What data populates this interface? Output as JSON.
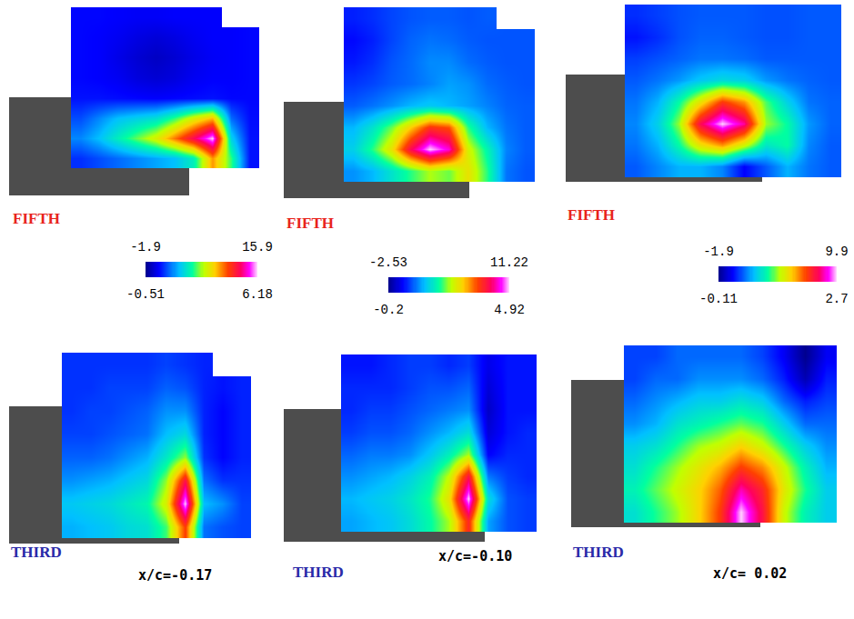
{
  "chart_data": [
    {
      "type": "heatmap",
      "title": "FIFTH",
      "tick_labels": false,
      "zlim": [
        -1.9,
        15.9
      ],
      "zticks": [
        -1.9,
        15.9
      ],
      "z": [
        [
          0.3,
          0.3,
          0.2,
          0.1,
          0.1,
          0.2,
          0.2,
          0.2,
          null,
          null
        ],
        [
          0.3,
          0.2,
          0.0,
          -0.3,
          -0.5,
          -0.3,
          0.0,
          0.2,
          0.2,
          0.3
        ],
        [
          0.3,
          0.2,
          -0.2,
          -0.6,
          -0.9,
          -0.6,
          -0.2,
          0.1,
          0.2,
          0.3
        ],
        [
          0.3,
          0.2,
          0.0,
          -0.4,
          -0.6,
          -0.4,
          0.0,
          0.2,
          0.2,
          0.3
        ],
        [
          0.5,
          0.5,
          0.4,
          0.3,
          0.2,
          0.3,
          0.4,
          0.5,
          0.3,
          0.3
        ],
        [
          1.5,
          2.5,
          3.5,
          4.0,
          4.5,
          6.0,
          8.0,
          9.5,
          2.0,
          0.4
        ],
        [
          2.5,
          3.5,
          5.0,
          6.5,
          8.0,
          10.5,
          13.0,
          15.9,
          4.0,
          0.5
        ],
        [
          1.0,
          1.5,
          2.0,
          2.5,
          3.0,
          3.5,
          5.0,
          10.0,
          6.0,
          0.5
        ]
      ]
    },
    {
      "type": "heatmap",
      "title": "FIFTH",
      "tick_labels": false,
      "zlim": [
        -2.53,
        11.22
      ],
      "zticks": [
        -2.53,
        11.22
      ],
      "z": [
        [
          -0.5,
          -0.3,
          0.0,
          0.2,
          0.3,
          0.3,
          0.2,
          0.3,
          null,
          null
        ],
        [
          -0.8,
          -0.5,
          0.0,
          0.4,
          0.6,
          0.5,
          0.3,
          0.2,
          0.2,
          0.2
        ],
        [
          -0.6,
          -0.3,
          0.2,
          0.5,
          0.9,
          0.9,
          0.5,
          0.3,
          0.2,
          0.2
        ],
        [
          -0.2,
          0.0,
          0.3,
          0.5,
          0.8,
          1.2,
          1.0,
          0.5,
          0.3,
          0.2
        ],
        [
          0.3,
          0.6,
          1.0,
          1.5,
          1.8,
          1.5,
          1.2,
          0.8,
          0.4,
          0.3
        ],
        [
          1.5,
          2.5,
          4.0,
          6.0,
          8.0,
          7.5,
          3.5,
          1.5,
          0.6,
          0.3
        ],
        [
          2.0,
          3.5,
          5.5,
          9.0,
          11.22,
          10.0,
          5.0,
          3.0,
          0.8,
          0.3
        ],
        [
          1.0,
          1.5,
          2.5,
          3.5,
          4.5,
          4.0,
          5.5,
          3.5,
          0.6,
          0.2
        ]
      ]
    },
    {
      "type": "heatmap",
      "title": "FIFTH",
      "tick_labels": false,
      "zlim": [
        -1.9,
        9.9
      ],
      "zticks": [
        -1.9,
        9.9
      ],
      "z": [
        [
          0.0,
          0.2,
          0.4,
          0.5,
          0.5,
          0.5,
          0.4,
          0.4,
          0.5,
          0.5
        ],
        [
          -0.3,
          0.0,
          0.4,
          0.6,
          0.6,
          0.5,
          0.4,
          0.4,
          0.5,
          0.5
        ],
        [
          0.2,
          0.4,
          0.6,
          0.8,
          0.8,
          0.7,
          0.5,
          0.5,
          0.5,
          0.5
        ],
        [
          0.5,
          0.8,
          1.2,
          1.8,
          2.2,
          2.0,
          1.2,
          0.8,
          0.6,
          0.5
        ],
        [
          0.8,
          1.5,
          3.0,
          5.0,
          7.0,
          6.0,
          3.5,
          2.0,
          0.8,
          0.6
        ],
        [
          1.0,
          2.0,
          4.0,
          8.0,
          9.9,
          8.5,
          4.0,
          3.0,
          1.2,
          0.6
        ],
        [
          0.8,
          1.5,
          3.0,
          5.0,
          6.0,
          4.5,
          2.5,
          3.0,
          1.0,
          0.5
        ],
        [
          0.5,
          1.0,
          1.5,
          1.5,
          1.0,
          -0.5,
          0.5,
          1.5,
          0.8,
          0.5
        ]
      ]
    },
    {
      "type": "heatmap",
      "title": "THIRD",
      "annotations": [
        "x/c=-0.17"
      ],
      "tick_labels": false,
      "zlim": [
        -0.51,
        6.18
      ],
      "zticks": [
        -0.51,
        6.18
      ],
      "z": [
        [
          0.6,
          0.6,
          0.6,
          0.6,
          0.6,
          0.7,
          0.6,
          0.5,
          null,
          null
        ],
        [
          0.6,
          0.6,
          0.7,
          0.7,
          0.7,
          0.9,
          0.8,
          0.5,
          0.4,
          0.5
        ],
        [
          0.6,
          0.7,
          0.7,
          0.8,
          0.9,
          1.2,
          1.2,
          0.5,
          0.3,
          0.5
        ],
        [
          0.7,
          0.7,
          0.8,
          0.9,
          1.0,
          1.5,
          1.8,
          0.5,
          0.3,
          0.5
        ],
        [
          0.9,
          0.9,
          1.0,
          1.2,
          1.4,
          2.0,
          2.8,
          0.6,
          0.3,
          0.5
        ],
        [
          1.2,
          1.3,
          1.4,
          1.6,
          1.8,
          2.8,
          5.0,
          1.0,
          0.6,
          0.6
        ],
        [
          1.6,
          1.7,
          1.8,
          2.0,
          2.2,
          3.2,
          6.18,
          1.5,
          1.2,
          0.7
        ],
        [
          1.4,
          1.5,
          1.6,
          1.8,
          1.9,
          2.5,
          4.5,
          1.0,
          0.8,
          0.7
        ]
      ]
    },
    {
      "type": "heatmap",
      "title": "THIRD",
      "annotations": [
        "x/c=-0.10"
      ],
      "tick_labels": false,
      "zlim": [
        -0.2,
        4.92
      ],
      "zticks": [
        -0.2,
        4.92
      ],
      "z": [
        [
          0.5,
          0.5,
          0.6,
          0.7,
          0.7,
          0.6,
          0.7,
          0.3,
          0.5,
          0.5
        ],
        [
          0.6,
          0.6,
          0.6,
          0.7,
          0.8,
          0.8,
          0.9,
          0.2,
          0.5,
          0.5
        ],
        [
          0.6,
          0.7,
          0.7,
          0.8,
          0.9,
          1.0,
          1.1,
          0.1,
          0.5,
          0.5
        ],
        [
          0.7,
          0.8,
          0.8,
          0.9,
          1.1,
          1.3,
          1.6,
          0.2,
          0.5,
          0.6
        ],
        [
          0.9,
          1.0,
          1.0,
          1.1,
          1.4,
          1.8,
          2.4,
          0.4,
          0.6,
          0.6
        ],
        [
          1.1,
          1.2,
          1.3,
          1.5,
          1.8,
          2.5,
          4.0,
          1.0,
          0.7,
          0.6
        ],
        [
          1.3,
          1.4,
          1.5,
          1.7,
          2.0,
          2.8,
          4.92,
          1.6,
          0.8,
          0.7
        ],
        [
          1.2,
          1.3,
          1.4,
          1.6,
          1.9,
          2.4,
          3.8,
          1.2,
          0.8,
          0.7
        ]
      ]
    },
    {
      "type": "heatmap",
      "title": "THIRD",
      "annotations": [
        "x/c= 0.02"
      ],
      "tick_labels": false,
      "zlim": [
        -0.11,
        2.7
      ],
      "zticks": [
        -0.11,
        2.7
      ],
      "z": [
        [
          0.4,
          0.4,
          0.5,
          0.5,
          0.5,
          0.5,
          0.4,
          0.2,
          -0.11,
          0.2
        ],
        [
          0.4,
          0.5,
          0.5,
          0.6,
          0.6,
          0.6,
          0.5,
          0.3,
          0.0,
          0.3
        ],
        [
          0.5,
          0.6,
          0.7,
          0.8,
          0.8,
          0.9,
          0.8,
          0.5,
          0.3,
          0.4
        ],
        [
          0.6,
          0.7,
          0.9,
          1.0,
          1.1,
          1.2,
          1.1,
          0.8,
          0.5,
          0.5
        ],
        [
          0.8,
          0.9,
          1.1,
          1.3,
          1.4,
          1.6,
          1.4,
          1.1,
          0.8,
          0.6
        ],
        [
          0.9,
          1.1,
          1.3,
          1.5,
          1.7,
          2.0,
          1.8,
          1.4,
          1.0,
          0.7
        ],
        [
          1.0,
          1.2,
          1.4,
          1.6,
          1.9,
          2.4,
          2.1,
          1.5,
          1.1,
          0.8
        ],
        [
          0.9,
          1.1,
          1.3,
          1.6,
          2.0,
          2.7,
          2.2,
          1.4,
          1.0,
          0.8
        ]
      ]
    }
  ]
}
